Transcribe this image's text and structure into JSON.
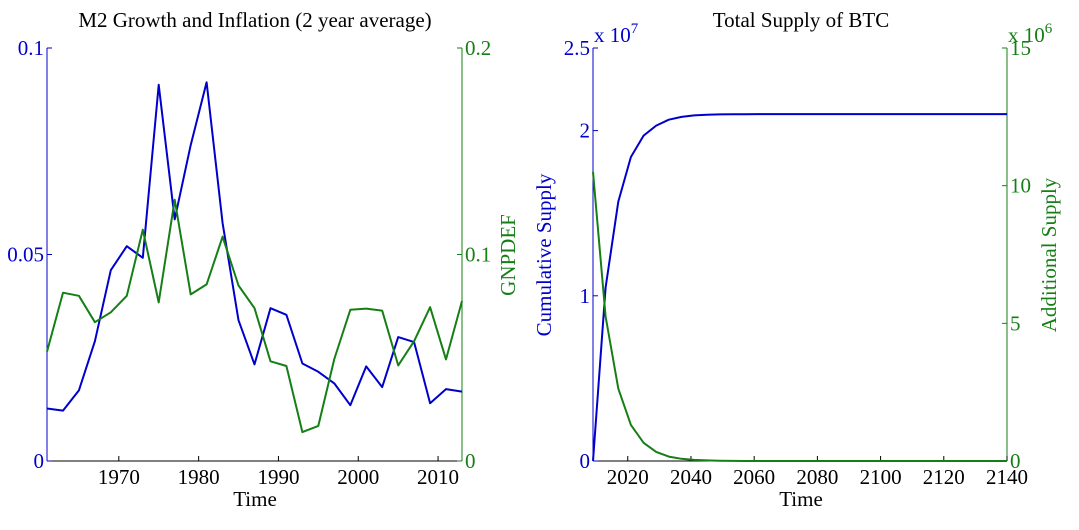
{
  "colors": {
    "blue": "#0000cc",
    "green": "#157f15",
    "axis": "#000000"
  },
  "chart_data": [
    {
      "type": "line",
      "title": "M2 Growth and Inflation (2 year average)",
      "xlabel": "Time",
      "ylabel_left": "",
      "ylabel_right": "GNPDEF",
      "xlim": [
        1961,
        2013
      ],
      "ylim_left": [
        0,
        0.1
      ],
      "ylim_right": [
        0,
        0.2
      ],
      "xticks": [
        1970,
        1980,
        1990,
        2000,
        2010
      ],
      "yticks_left": [
        0,
        0.05,
        0.1
      ],
      "yticks_left_labels": [
        "0",
        "0.05",
        "0.1"
      ],
      "yticks_right": [
        0,
        0.1,
        0.2
      ],
      "yticks_right_labels": [
        "0",
        "0.1",
        "0.2"
      ],
      "grid": false,
      "legend": "none",
      "series": [
        {
          "axis": "left",
          "color": "blue",
          "x": [
            1961,
            1963,
            1965,
            1967,
            1969,
            1971,
            1973,
            1975,
            1977,
            1979,
            1981,
            1983,
            1985,
            1987,
            1989,
            1991,
            1993,
            1995,
            1997,
            1999,
            2001,
            2003,
            2005,
            2007,
            2009,
            2011,
            2013
          ],
          "y": [
            0.0127,
            0.0122,
            0.0171,
            0.029,
            0.0462,
            0.052,
            0.0492,
            0.0911,
            0.0585,
            0.0765,
            0.0917,
            0.0576,
            0.0341,
            0.0234,
            0.037,
            0.0354,
            0.0236,
            0.0216,
            0.0188,
            0.0135,
            0.0229,
            0.0179,
            0.03,
            0.0288,
            0.014,
            0.0174,
            0.0168
          ]
        },
        {
          "axis": "right",
          "color": "green",
          "x": [
            1961,
            1963,
            1965,
            1967,
            1969,
            1971,
            1973,
            1975,
            1977,
            1979,
            1981,
            1983,
            1985,
            1987,
            1989,
            1991,
            1993,
            1995,
            1997,
            1999,
            2001,
            2003,
            2005,
            2007,
            2009,
            2011,
            2013
          ],
          "y": [
            0.053,
            0.0815,
            0.08,
            0.0672,
            0.072,
            0.08,
            0.112,
            0.0768,
            0.1265,
            0.0807,
            0.0855,
            0.1086,
            0.085,
            0.074,
            0.0483,
            0.046,
            0.014,
            0.017,
            0.0494,
            0.0732,
            0.0738,
            0.0728,
            0.0463,
            0.058,
            0.0745,
            0.0492,
            0.0775
          ]
        }
      ]
    },
    {
      "type": "line",
      "title": "Total Supply of BTC",
      "xlabel": "Time",
      "ylabel_left": "Cumulative Supply",
      "ylabel_right": "Additional Supply",
      "xlim": [
        2009,
        2140
      ],
      "ylim_left": [
        0,
        2.5
      ],
      "ylim_right": [
        0,
        15
      ],
      "multiplier_left": "x 10",
      "multiplier_left_exp": "7",
      "multiplier_right": "x 10",
      "multiplier_right_exp": "6",
      "xticks": [
        2020,
        2040,
        2060,
        2080,
        2100,
        2120,
        2140
      ],
      "yticks_left": [
        0,
        1,
        2,
        2.5
      ],
      "yticks_left_labels": [
        "0",
        "1",
        "2",
        "2.5"
      ],
      "yticks_right": [
        0,
        5,
        10,
        15
      ],
      "yticks_right_labels": [
        "0",
        "5",
        "10",
        "15"
      ],
      "grid": false,
      "legend": "none",
      "series": [
        {
          "axis": "left",
          "color": "blue",
          "x": [
            2009,
            2013,
            2017,
            2021,
            2025,
            2029,
            2033,
            2037,
            2041,
            2045,
            2049,
            2053,
            2057,
            2061,
            2140
          ],
          "y": [
            0,
            1.05,
            1.57,
            1.84,
            1.97,
            2.03,
            2.066,
            2.083,
            2.092,
            2.096,
            2.098,
            2.099,
            2.0995,
            2.1,
            2.1
          ]
        },
        {
          "axis": "right",
          "color": "green",
          "x": [
            2009,
            2013,
            2017,
            2021,
            2025,
            2029,
            2033,
            2037,
            2041,
            2045,
            2049,
            2053,
            2057,
            2061,
            2140
          ],
          "y": [
            10.5,
            5.25,
            2.63,
            1.31,
            0.66,
            0.33,
            0.16,
            0.08,
            0.04,
            0.02,
            0.01,
            0.005,
            0,
            0,
            0
          ]
        }
      ]
    }
  ]
}
